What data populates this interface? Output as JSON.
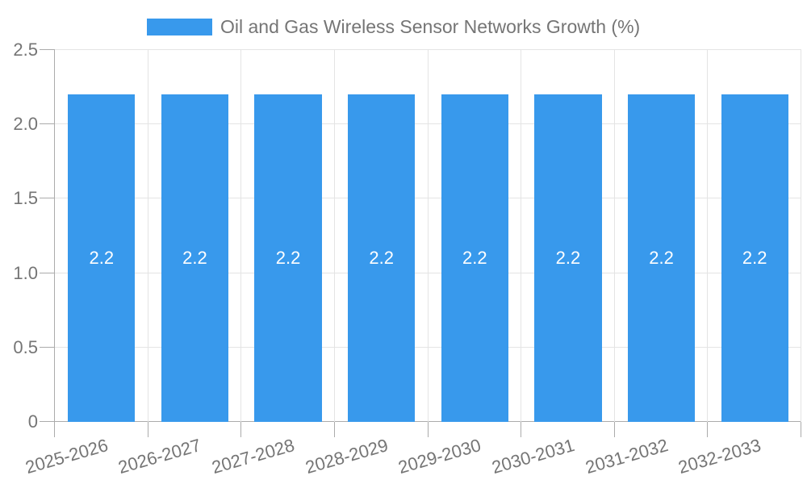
{
  "chart_data": {
    "type": "bar",
    "title": "Oil and Gas Wireless Sensor Networks Growth (%)",
    "legend_label": "Oil and Gas Wireless Sensor Networks Growth (%)",
    "legend_position": "top",
    "categories": [
      "2025-2026",
      "2026-2027",
      "2027-2028",
      "2028-2029",
      "2029-2030",
      "2030-2031",
      "2031-2032",
      "2032-2033"
    ],
    "series": [
      {
        "name": "Oil and Gas Wireless Sensor Networks Growth (%)",
        "values": [
          2.2,
          2.2,
          2.2,
          2.2,
          2.2,
          2.2,
          2.2,
          2.2
        ]
      }
    ],
    "bar_value_labels": [
      "2.2",
      "2.2",
      "2.2",
      "2.2",
      "2.2",
      "2.2",
      "2.2",
      "2.2"
    ],
    "y_axis": {
      "min": 0,
      "max": 2.5,
      "tick_step": 0.5,
      "tick_values": [
        0,
        0.5,
        1,
        1.5,
        2,
        2.5
      ],
      "tick_labels": [
        "0",
        "0.5",
        "1.0",
        "1.5",
        "2.0",
        "2.5"
      ]
    },
    "xlabel": "",
    "ylabel": "",
    "grid": true,
    "styles": {
      "bar_color": "#3899ec",
      "bar_label_color": "#ffffff",
      "text_color": "#757575",
      "grid_color": "#e4e4e4",
      "axis_color": "#ababab",
      "background": "#ffffff"
    }
  }
}
